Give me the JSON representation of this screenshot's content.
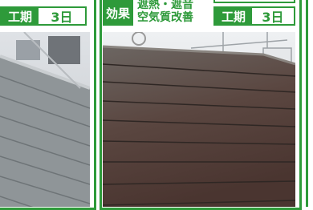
{
  "left_panel": {
    "period_label": "工期",
    "period_value": "3日"
  },
  "right_panel": {
    "effect_label": "効果",
    "effect_lines": [
      "遮熱・遮音",
      "空気質改善"
    ],
    "period_label": "工期",
    "period_value": "3日"
  }
}
